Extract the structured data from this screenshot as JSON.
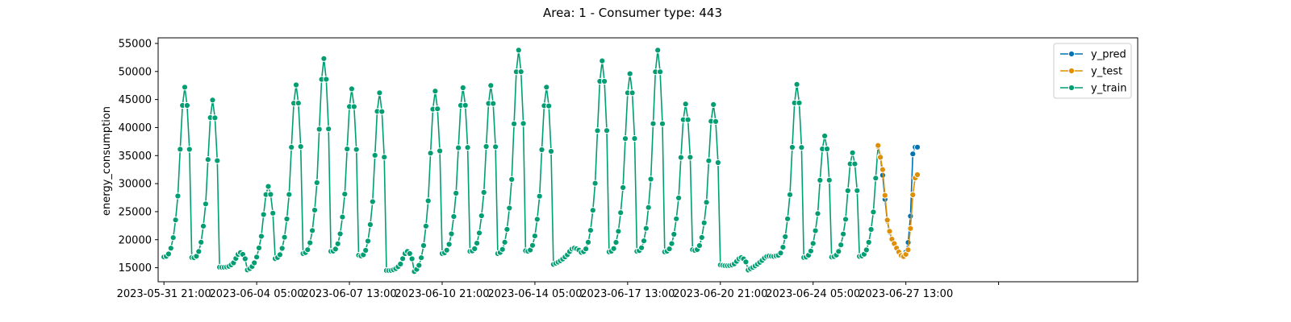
{
  "chart_data": {
    "type": "line",
    "title": "Area: 1 - Consumer type: 443",
    "xlabel": "",
    "ylabel": "energy_consumption",
    "x_tick_labels": [
      "2023-05-31 21:00",
      "2023-06-04 05:00",
      "2023-06-07 13:00",
      "2023-06-10 21:00",
      "2023-06-14 05:00",
      "2023-06-17 13:00",
      "2023-06-20 21:00",
      "2023-06-24 05:00",
      "2023-06-27 13:00",
      ""
    ],
    "x_unit": "hours",
    "y_ticks": [
      15000,
      20000,
      25000,
      30000,
      35000,
      40000,
      45000,
      50000,
      55000
    ],
    "ylim": [
      12500,
      56000
    ],
    "xlim_hours": [
      -5,
      840
    ],
    "grid": false,
    "legend_position": "top-right",
    "colors": {
      "y_pred": "#0173b2",
      "y_test": "#de8f05",
      "y_train": "#029e73"
    },
    "series": [
      {
        "name": "y_train",
        "start": "2023-05-31 21:00",
        "daily_peaks": [
          47200,
          44900,
          17700,
          29500,
          47600,
          52300,
          46900,
          46200,
          17900,
          46500,
          47100,
          47500,
          53800,
          47200,
          18500,
          51900,
          49600,
          53800,
          44200,
          44100,
          16800,
          17100,
          47700,
          38500,
          35500,
          39000
        ],
        "daily_troughs": [
          16900,
          16800,
          15100,
          14600,
          16600,
          17500,
          17900,
          17200,
          14500,
          14300,
          17500,
          17900,
          17500,
          18000,
          15600,
          17700,
          17800,
          17900,
          17800,
          18200,
          15500,
          14600,
          17100,
          16800,
          16900,
          17000
        ]
      },
      {
        "name": "y_test",
        "values": [
          36800,
          34700,
          32500,
          27900,
          23500,
          21500,
          20100,
          19300,
          18500,
          17800,
          17200,
          17000,
          17400,
          18200,
          22000,
          28000,
          31000,
          31600
        ]
      },
      {
        "name": "y_pred",
        "values": [
          36600,
          34900,
          31500,
          27200,
          23300,
          21300,
          20000,
          19200,
          18400,
          17700,
          17300,
          17200,
          17800,
          19500,
          24200,
          35300,
          36500,
          36500
        ]
      }
    ]
  }
}
